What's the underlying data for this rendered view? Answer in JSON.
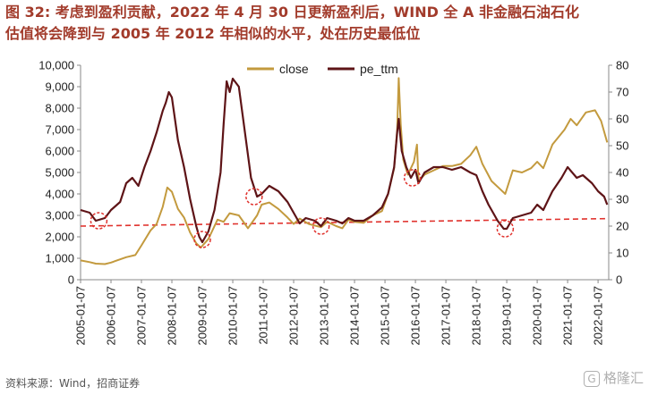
{
  "page": {
    "title_line1": "图 32: 考虑到盈利贡献，2022 年 4 月 30 日更新盈利后，WIND 全 A 非金融石油石化",
    "title_line2": "估值将会降到与 2005 年 2012 年相似的水平，处在历史最低位",
    "source": "资料来源：Wind，招商证券",
    "watermark": "格隆汇",
    "watermark_badge": "G"
  },
  "chart_data": {
    "type": "line",
    "title": "",
    "xlabel": "",
    "ylabel": "",
    "y_left_range": [
      0,
      10000
    ],
    "y_right_range": [
      0,
      80
    ],
    "y_left_ticks": [
      "0",
      "1,000",
      "2,000",
      "3,000",
      "4,000",
      "5,000",
      "6,000",
      "7,000",
      "8,000",
      "9,000",
      "10,000"
    ],
    "y_right_ticks": [
      "0",
      "10",
      "20",
      "30",
      "40",
      "50",
      "60",
      "70",
      "80"
    ],
    "x_ticks": [
      "2005-01-07",
      "2006-01-07",
      "2007-01-07",
      "2008-01-07",
      "2009-01-07",
      "2010-01-07",
      "2011-01-07",
      "2012-01-07",
      "2013-01-07",
      "2014-01-07",
      "2015-01-07",
      "2016-01-07",
      "2017-01-07",
      "2018-01-07",
      "2019-01-07",
      "2020-01-07",
      "2021-01-07",
      "2022-01-07"
    ],
    "x_range": [
      2005.0,
      2022.35
    ],
    "legend_position": "top",
    "grid": false,
    "series": [
      {
        "name": "close",
        "axis": "left",
        "color": "#c39a3e",
        "points": [
          [
            2005.0,
            900
          ],
          [
            2005.3,
            820
          ],
          [
            2005.5,
            750
          ],
          [
            2005.8,
            730
          ],
          [
            2006.0,
            800
          ],
          [
            2006.3,
            950
          ],
          [
            2006.5,
            1050
          ],
          [
            2006.8,
            1150
          ],
          [
            2007.0,
            1600
          ],
          [
            2007.3,
            2300
          ],
          [
            2007.5,
            2600
          ],
          [
            2007.7,
            3400
          ],
          [
            2007.85,
            4300
          ],
          [
            2008.0,
            4100
          ],
          [
            2008.2,
            3300
          ],
          [
            2008.4,
            2900
          ],
          [
            2008.6,
            2200
          ],
          [
            2008.8,
            1700
          ],
          [
            2008.95,
            1500
          ],
          [
            2009.2,
            1900
          ],
          [
            2009.5,
            2800
          ],
          [
            2009.7,
            2700
          ],
          [
            2009.9,
            3100
          ],
          [
            2010.2,
            3000
          ],
          [
            2010.5,
            2400
          ],
          [
            2010.8,
            3000
          ],
          [
            2010.95,
            3500
          ],
          [
            2011.2,
            3600
          ],
          [
            2011.5,
            3300
          ],
          [
            2011.8,
            2900
          ],
          [
            2012.0,
            2600
          ],
          [
            2012.2,
            2850
          ],
          [
            2012.5,
            2600
          ],
          [
            2012.9,
            2450
          ],
          [
            2013.1,
            2700
          ],
          [
            2013.4,
            2500
          ],
          [
            2013.6,
            2400
          ],
          [
            2013.8,
            2800
          ],
          [
            2014.0,
            2700
          ],
          [
            2014.3,
            2650
          ],
          [
            2014.6,
            3000
          ],
          [
            2014.9,
            3200
          ],
          [
            2015.1,
            4000
          ],
          [
            2015.3,
            5200
          ],
          [
            2015.4,
            7000
          ],
          [
            2015.45,
            9400
          ],
          [
            2015.52,
            7200
          ],
          [
            2015.6,
            5600
          ],
          [
            2015.75,
            4900
          ],
          [
            2015.95,
            5500
          ],
          [
            2016.05,
            6300
          ],
          [
            2016.1,
            4600
          ],
          [
            2016.3,
            4900
          ],
          [
            2016.6,
            5100
          ],
          [
            2016.9,
            5300
          ],
          [
            2017.2,
            5300
          ],
          [
            2017.5,
            5400
          ],
          [
            2017.8,
            5800
          ],
          [
            2018.0,
            6200
          ],
          [
            2018.2,
            5400
          ],
          [
            2018.5,
            4600
          ],
          [
            2018.8,
            4200
          ],
          [
            2018.95,
            4000
          ],
          [
            2019.2,
            5100
          ],
          [
            2019.5,
            5000
          ],
          [
            2019.8,
            5200
          ],
          [
            2020.0,
            5500
          ],
          [
            2020.2,
            5200
          ],
          [
            2020.5,
            6300
          ],
          [
            2020.9,
            7000
          ],
          [
            2021.1,
            7500
          ],
          [
            2021.3,
            7200
          ],
          [
            2021.6,
            7800
          ],
          [
            2021.9,
            7900
          ],
          [
            2022.1,
            7400
          ],
          [
            2022.3,
            6400
          ]
        ]
      },
      {
        "name": "pe_ttm",
        "axis": "right",
        "color": "#5e1417",
        "points": [
          [
            2005.0,
            26
          ],
          [
            2005.3,
            25
          ],
          [
            2005.5,
            22
          ],
          [
            2005.8,
            23
          ],
          [
            2006.0,
            26
          ],
          [
            2006.3,
            29
          ],
          [
            2006.5,
            36
          ],
          [
            2006.7,
            38
          ],
          [
            2006.9,
            35
          ],
          [
            2007.1,
            42
          ],
          [
            2007.3,
            48
          ],
          [
            2007.5,
            55
          ],
          [
            2007.7,
            63
          ],
          [
            2007.8,
            66
          ],
          [
            2007.9,
            70
          ],
          [
            2008.0,
            68
          ],
          [
            2008.2,
            52
          ],
          [
            2008.4,
            42
          ],
          [
            2008.6,
            30
          ],
          [
            2008.8,
            20
          ],
          [
            2008.9,
            16
          ],
          [
            2009.0,
            14
          ],
          [
            2009.2,
            18
          ],
          [
            2009.4,
            26
          ],
          [
            2009.6,
            40
          ],
          [
            2009.7,
            58
          ],
          [
            2009.8,
            74
          ],
          [
            2009.9,
            70
          ],
          [
            2010.0,
            75
          ],
          [
            2010.2,
            72
          ],
          [
            2010.4,
            55
          ],
          [
            2010.6,
            38
          ],
          [
            2010.8,
            31
          ],
          [
            2010.95,
            32
          ],
          [
            2011.2,
            35
          ],
          [
            2011.5,
            33
          ],
          [
            2011.8,
            29
          ],
          [
            2012.0,
            25
          ],
          [
            2012.2,
            21
          ],
          [
            2012.4,
            23
          ],
          [
            2012.7,
            22
          ],
          [
            2012.9,
            20
          ],
          [
            2013.1,
            23
          ],
          [
            2013.4,
            22
          ],
          [
            2013.6,
            21
          ],
          [
            2013.8,
            23
          ],
          [
            2014.0,
            22
          ],
          [
            2014.3,
            22
          ],
          [
            2014.6,
            24
          ],
          [
            2014.9,
            27
          ],
          [
            2015.1,
            32
          ],
          [
            2015.3,
            42
          ],
          [
            2015.4,
            55
          ],
          [
            2015.45,
            60
          ],
          [
            2015.55,
            48
          ],
          [
            2015.7,
            42
          ],
          [
            2015.85,
            38
          ],
          [
            2016.0,
            41
          ],
          [
            2016.1,
            36
          ],
          [
            2016.3,
            40
          ],
          [
            2016.6,
            42
          ],
          [
            2016.9,
            42
          ],
          [
            2017.2,
            41
          ],
          [
            2017.5,
            42
          ],
          [
            2017.8,
            40
          ],
          [
            2018.0,
            39
          ],
          [
            2018.2,
            33
          ],
          [
            2018.4,
            28
          ],
          [
            2018.7,
            22
          ],
          [
            2018.9,
            19
          ],
          [
            2019.0,
            19
          ],
          [
            2019.2,
            23
          ],
          [
            2019.5,
            24
          ],
          [
            2019.8,
            25
          ],
          [
            2020.0,
            28
          ],
          [
            2020.2,
            26
          ],
          [
            2020.5,
            33
          ],
          [
            2020.8,
            38
          ],
          [
            2021.0,
            42
          ],
          [
            2021.3,
            38
          ],
          [
            2021.5,
            39
          ],
          [
            2021.8,
            36
          ],
          [
            2022.0,
            33
          ],
          [
            2022.2,
            31
          ],
          [
            2022.3,
            28
          ]
        ]
      }
    ],
    "annotations": {
      "trend_line": {
        "style": "dashed",
        "color": "#e0322d",
        "axis": "right",
        "from": [
          2005.0,
          20
        ],
        "to": [
          2022.35,
          22.8
        ]
      },
      "circles": [
        {
          "x": 2005.6,
          "y": 22,
          "axis": "right"
        },
        {
          "x": 2009.0,
          "y": 15,
          "axis": "right"
        },
        {
          "x": 2010.7,
          "y": 31,
          "axis": "right"
        },
        {
          "x": 2012.9,
          "y": 20,
          "axis": "right"
        },
        {
          "x": 2015.9,
          "y": 38,
          "axis": "right"
        },
        {
          "x": 2018.95,
          "y": 19,
          "axis": "right"
        }
      ]
    }
  }
}
